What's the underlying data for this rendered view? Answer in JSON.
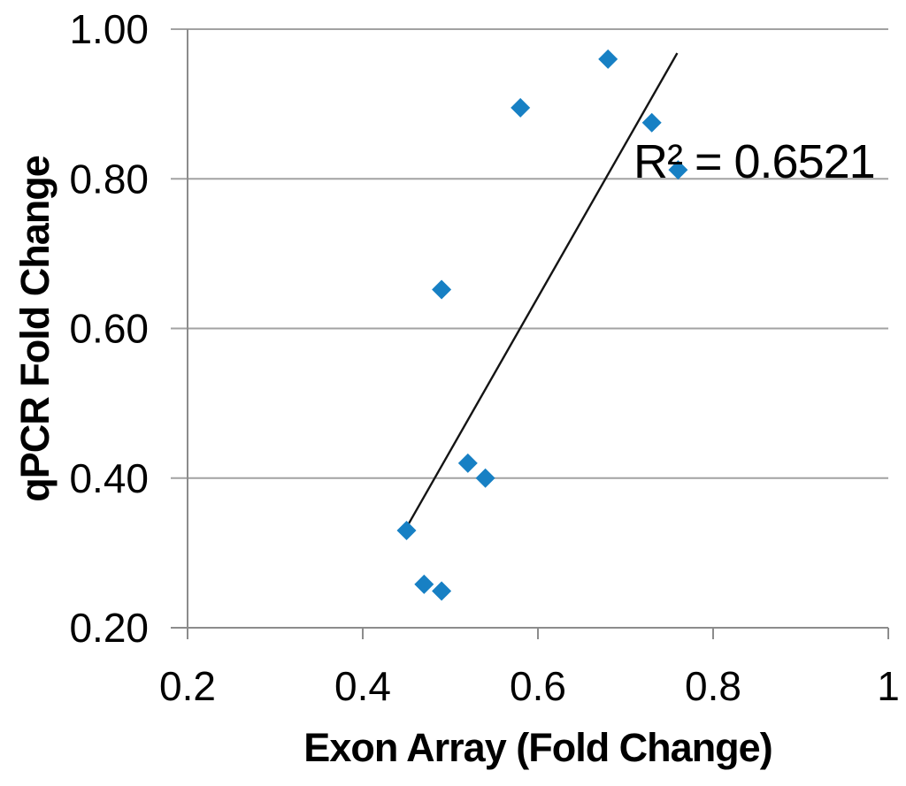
{
  "chart_data": {
    "type": "scatter",
    "title": "",
    "xlabel": "Exon Array (Fold Change)",
    "ylabel": "qPCR Fold Change",
    "annotation": "R² = 0.6521",
    "r_squared": 0.6521,
    "xlim": [
      0.2,
      1.0
    ],
    "ylim": [
      0.2,
      1.0
    ],
    "grid": "horizontal",
    "legend_position": "none",
    "x_ticks": [
      {
        "value": 0.2,
        "label": "0.2"
      },
      {
        "value": 0.4,
        "label": "0.4"
      },
      {
        "value": 0.6,
        "label": "0.6"
      },
      {
        "value": 0.8,
        "label": "0.8"
      },
      {
        "value": 1.0,
        "label": "1"
      }
    ],
    "y_ticks": [
      {
        "value": 0.2,
        "label": "0.20"
      },
      {
        "value": 0.4,
        "label": "0.40"
      },
      {
        "value": 0.6,
        "label": "0.60"
      },
      {
        "value": 0.8,
        "label": "0.80"
      },
      {
        "value": 1.0,
        "label": "1.00"
      }
    ],
    "points": [
      {
        "x": 0.45,
        "y": 0.33
      },
      {
        "x": 0.47,
        "y": 0.258
      },
      {
        "x": 0.49,
        "y": 0.249
      },
      {
        "x": 0.49,
        "y": 0.652
      },
      {
        "x": 0.52,
        "y": 0.42
      },
      {
        "x": 0.54,
        "y": 0.4
      },
      {
        "x": 0.58,
        "y": 0.895
      },
      {
        "x": 0.68,
        "y": 0.96
      },
      {
        "x": 0.73,
        "y": 0.875
      },
      {
        "x": 0.76,
        "y": 0.812
      }
    ],
    "trendline": {
      "x1": 0.449,
      "y1": 0.332,
      "x2": 0.759,
      "y2": 0.968
    },
    "marker": "diamond",
    "colors": {
      "marker": "#1780C4",
      "trendline": "#141414",
      "gridline": "#A2A2A2",
      "axis": "#8C8C8C",
      "text": "#000000",
      "background": "#FFFFFF"
    }
  }
}
